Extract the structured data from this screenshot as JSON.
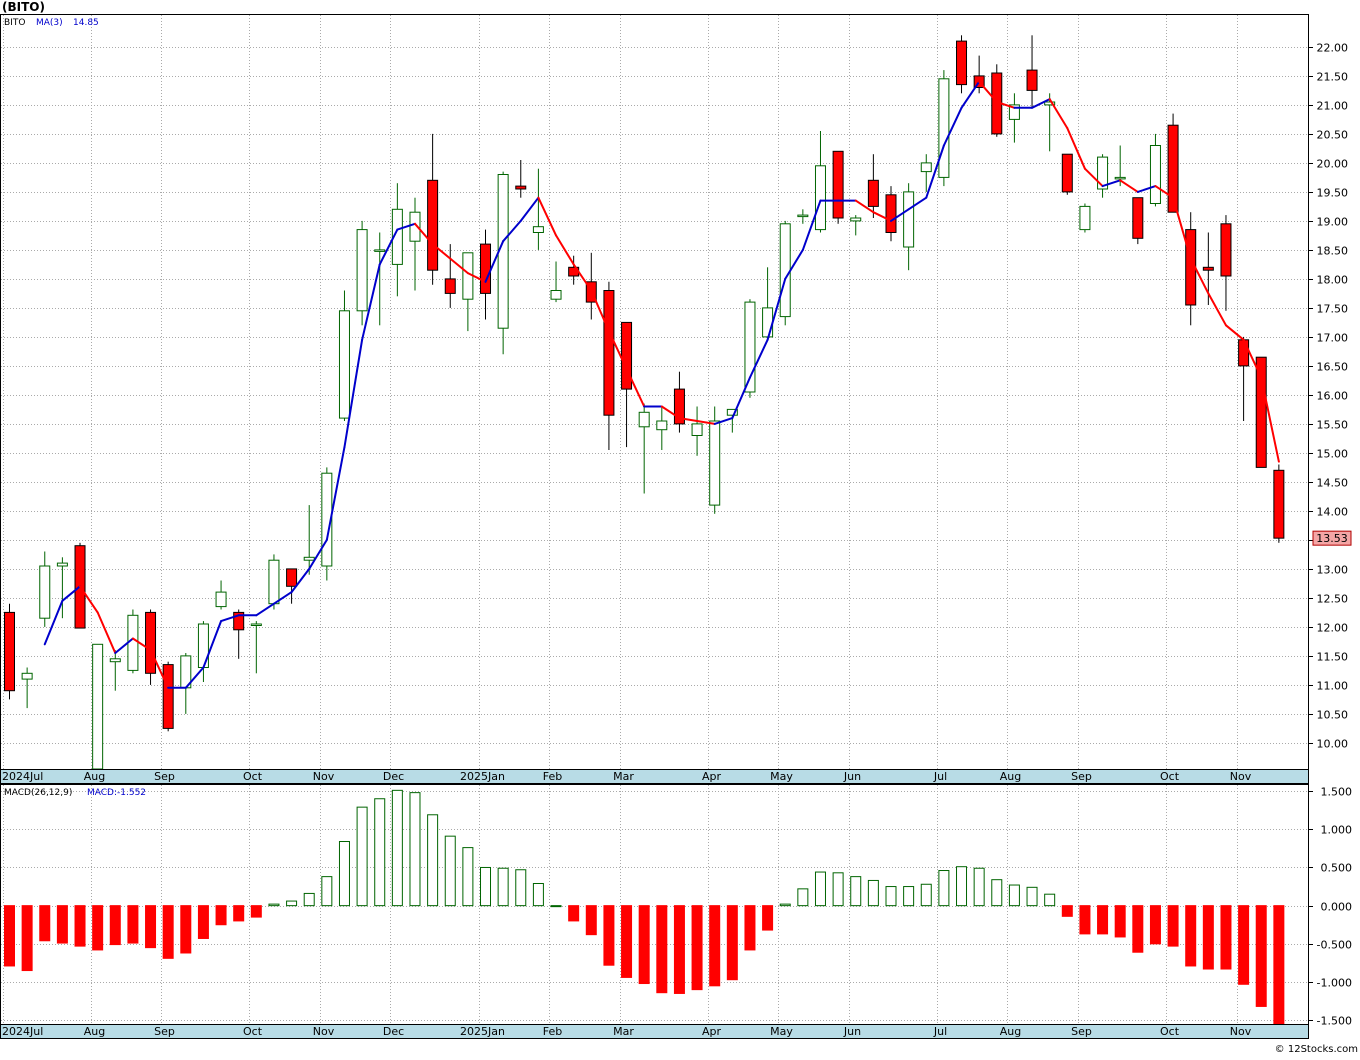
{
  "ticker_title": "(BITO)",
  "price_legend": {
    "symbol": "BITO",
    "ma_label": "MA(3)",
    "ma_value": "14.85"
  },
  "macd_legend": {
    "label": "MACD(26,12,9)",
    "value_label": "MACD:-1.552"
  },
  "last_price_label": "13.53",
  "watermark": "© 12Stocks.com",
  "x_labels": [
    {
      "text": "2024Jul",
      "week": 0
    },
    {
      "text": "Aug",
      "week": 5
    },
    {
      "text": "Sep",
      "week": 9
    },
    {
      "text": "Oct",
      "week": 14
    },
    {
      "text": "Nov",
      "week": 18
    },
    {
      "text": "Dec",
      "week": 22
    },
    {
      "text": "2025Jan",
      "week": 27
    },
    {
      "text": "Feb",
      "week": 31
    },
    {
      "text": "Mar",
      "week": 35
    },
    {
      "text": "Apr",
      "week": 40
    },
    {
      "text": "May",
      "week": 44
    },
    {
      "text": "Jun",
      "week": 48
    },
    {
      "text": "Jul",
      "week": 53
    },
    {
      "text": "Aug",
      "week": 57
    },
    {
      "text": "Sep",
      "week": 61
    },
    {
      "text": "Oct",
      "week": 66
    },
    {
      "text": "Nov",
      "week": 70
    }
  ],
  "colors": {
    "up": "#006400",
    "down": "#ff0000",
    "ma_up": "#0000cc",
    "ma_down": "#ff0000",
    "grid": "#aaaaaa",
    "axis_band": "#b8dce6"
  },
  "chart_data": [
    {
      "type": "candlestick",
      "title": "(BITO)",
      "y_ticks": [
        "10.00",
        "10.50",
        "11.00",
        "11.50",
        "12.00",
        "12.50",
        "13.00",
        "13.50",
        "14.00",
        "14.50",
        "15.00",
        "15.50",
        "16.00",
        "16.50",
        "17.00",
        "17.50",
        "18.00",
        "18.50",
        "19.00",
        "19.50",
        "20.00",
        "20.50",
        "21.00",
        "21.50",
        "22.00"
      ],
      "ylim": [
        9.55,
        22.55
      ],
      "grid": true,
      "series": [
        {
          "name": "BITO",
          "candles": [
            [
              12.25,
              12.4,
              10.75,
              10.9
            ],
            [
              11.1,
              11.3,
              10.6,
              11.2
            ],
            [
              12.15,
              13.3,
              12.0,
              13.05
            ],
            [
              13.05,
              13.2,
              12.15,
              13.1
            ],
            [
              13.4,
              13.45,
              12.0,
              11.98
            ],
            [
              9.55,
              11.7,
              9.52,
              11.7
            ],
            [
              11.4,
              11.6,
              10.9,
              11.45
            ],
            [
              11.25,
              12.3,
              11.2,
              12.2
            ],
            [
              12.25,
              12.3,
              11.0,
              11.2
            ],
            [
              11.35,
              11.4,
              10.2,
              10.25
            ],
            [
              10.95,
              11.55,
              10.5,
              11.5
            ],
            [
              11.3,
              12.1,
              11.05,
              12.05
            ],
            [
              12.35,
              12.8,
              12.3,
              12.6
            ],
            [
              12.25,
              12.3,
              11.45,
              11.95
            ],
            [
              12.05,
              12.1,
              11.2,
              12.05
            ],
            [
              12.4,
              13.25,
              12.3,
              13.15
            ],
            [
              13.0,
              13.0,
              12.4,
              12.7
            ],
            [
              13.15,
              14.1,
              12.9,
              13.2
            ],
            [
              13.05,
              14.75,
              12.8,
              14.65
            ],
            [
              15.6,
              17.8,
              15.55,
              17.45
            ],
            [
              17.45,
              19.0,
              17.2,
              18.85
            ],
            [
              18.5,
              18.8,
              17.2,
              18.5
            ],
            [
              18.25,
              19.65,
              17.7,
              19.2
            ],
            [
              18.65,
              19.4,
              17.8,
              19.15
            ],
            [
              19.7,
              20.5,
              17.9,
              18.15
            ],
            [
              18.0,
              18.6,
              17.5,
              17.75
            ],
            [
              17.65,
              18.45,
              17.1,
              18.45
            ],
            [
              18.6,
              18.85,
              17.3,
              17.75
            ],
            [
              17.15,
              19.85,
              16.7,
              19.8
            ],
            [
              19.6,
              20.05,
              19.4,
              19.55
            ],
            [
              18.8,
              19.9,
              18.5,
              18.9
            ],
            [
              17.65,
              18.3,
              17.6,
              17.8
            ],
            [
              18.2,
              18.4,
              17.9,
              18.05
            ],
            [
              17.95,
              18.45,
              17.3,
              17.6
            ],
            [
              17.8,
              17.95,
              15.05,
              15.65
            ],
            [
              17.25,
              17.25,
              15.1,
              16.1
            ],
            [
              15.45,
              15.85,
              14.3,
              15.7
            ],
            [
              15.4,
              15.8,
              15.05,
              15.55
            ],
            [
              16.1,
              16.4,
              15.35,
              15.5
            ],
            [
              15.3,
              15.8,
              14.95,
              15.5
            ],
            [
              14.1,
              15.8,
              13.95,
              15.55
            ],
            [
              15.65,
              15.7,
              15.35,
              15.75
            ],
            [
              16.05,
              17.65,
              15.95,
              17.6
            ],
            [
              17.0,
              18.2,
              16.95,
              17.5
            ],
            [
              17.35,
              19.0,
              17.2,
              18.95
            ],
            [
              19.1,
              19.2,
              18.95,
              19.1
            ],
            [
              18.85,
              20.55,
              18.8,
              19.95
            ],
            [
              20.2,
              20.2,
              18.95,
              19.05
            ],
            [
              19.0,
              19.1,
              18.75,
              19.05
            ],
            [
              19.7,
              20.15,
              19.05,
              19.25
            ],
            [
              19.45,
              19.6,
              18.65,
              18.8
            ],
            [
              18.55,
              19.65,
              18.15,
              19.5
            ],
            [
              19.85,
              20.15,
              19.5,
              20.0
            ],
            [
              19.75,
              21.6,
              19.6,
              21.45
            ],
            [
              22.1,
              22.2,
              21.2,
              21.35
            ],
            [
              21.5,
              21.85,
              21.2,
              21.3
            ],
            [
              21.55,
              21.7,
              20.45,
              20.5
            ],
            [
              20.75,
              21.2,
              20.35,
              21.0
            ],
            [
              21.6,
              22.2,
              20.95,
              21.25
            ],
            [
              21.0,
              21.2,
              20.2,
              21.05
            ],
            [
              20.15,
              20.15,
              19.45,
              19.5
            ],
            [
              18.85,
              19.3,
              18.8,
              19.25
            ],
            [
              19.55,
              20.15,
              19.4,
              20.1
            ],
            [
              19.75,
              20.3,
              19.6,
              19.75
            ],
            [
              19.4,
              19.4,
              18.6,
              18.7
            ],
            [
              19.3,
              20.5,
              19.25,
              20.3
            ],
            [
              20.65,
              20.85,
              19.15,
              19.15
            ],
            [
              18.85,
              19.15,
              17.2,
              17.55
            ],
            [
              18.2,
              18.8,
              17.55,
              18.15
            ],
            [
              18.95,
              19.1,
              17.45,
              18.05
            ],
            [
              16.95,
              17.0,
              15.55,
              16.5
            ],
            [
              16.65,
              16.65,
              14.75,
              14.75
            ],
            [
              14.7,
              14.8,
              13.45,
              13.53
            ]
          ]
        },
        {
          "name": "MA(3)",
          "values": [
            null,
            null,
            11.7,
            12.45,
            12.7,
            12.25,
            11.55,
            11.8,
            11.6,
            10.95,
            10.95,
            11.3,
            12.1,
            12.2,
            12.2,
            12.4,
            12.6,
            13.0,
            13.5,
            15.1,
            16.95,
            18.25,
            18.85,
            18.95,
            18.6,
            18.35,
            18.1,
            17.95,
            18.65,
            19.0,
            19.4,
            18.75,
            18.25,
            17.8,
            17.1,
            16.45,
            15.8,
            15.8,
            15.6,
            15.55,
            15.5,
            15.6,
            16.3,
            16.95,
            18.0,
            18.5,
            19.35,
            19.35,
            19.35,
            19.15,
            19.0,
            19.2,
            19.4,
            20.3,
            20.95,
            21.4,
            21.05,
            20.95,
            20.95,
            21.1,
            20.6,
            19.9,
            19.6,
            19.7,
            19.5,
            19.6,
            19.4,
            18.35,
            17.75,
            17.2,
            16.95,
            16.3,
            14.85
          ]
        }
      ]
    },
    {
      "type": "bar",
      "title": "MACD(26,12,9)",
      "y_ticks": [
        "-1.500",
        "-1.000",
        "-0.500",
        "0.000",
        "0.500",
        "1.000",
        "1.500"
      ],
      "ylim": [
        -1.55,
        1.58
      ],
      "grid": true,
      "series": [
        {
          "name": "MACD",
          "values": [
            -0.79,
            -0.85,
            -0.46,
            -0.49,
            -0.53,
            -0.58,
            -0.51,
            -0.49,
            -0.55,
            -0.69,
            -0.62,
            -0.43,
            -0.25,
            -0.2,
            -0.15,
            0.02,
            0.06,
            0.16,
            0.38,
            0.84,
            1.29,
            1.4,
            1.51,
            1.48,
            1.19,
            0.91,
            0.76,
            0.5,
            0.49,
            0.47,
            0.29,
            0.0,
            -0.2,
            -0.38,
            -0.78,
            -0.94,
            -1.02,
            -1.14,
            -1.15,
            -1.1,
            -1.05,
            -0.97,
            -0.58,
            -0.32,
            0.02,
            0.22,
            0.44,
            0.43,
            0.38,
            0.33,
            0.25,
            0.25,
            0.28,
            0.46,
            0.51,
            0.49,
            0.34,
            0.27,
            0.24,
            0.15,
            -0.14,
            -0.37,
            -0.37,
            -0.41,
            -0.61,
            -0.5,
            -0.53,
            -0.79,
            -0.83,
            -0.83,
            -1.03,
            -1.32,
            -1.55
          ]
        }
      ]
    }
  ]
}
